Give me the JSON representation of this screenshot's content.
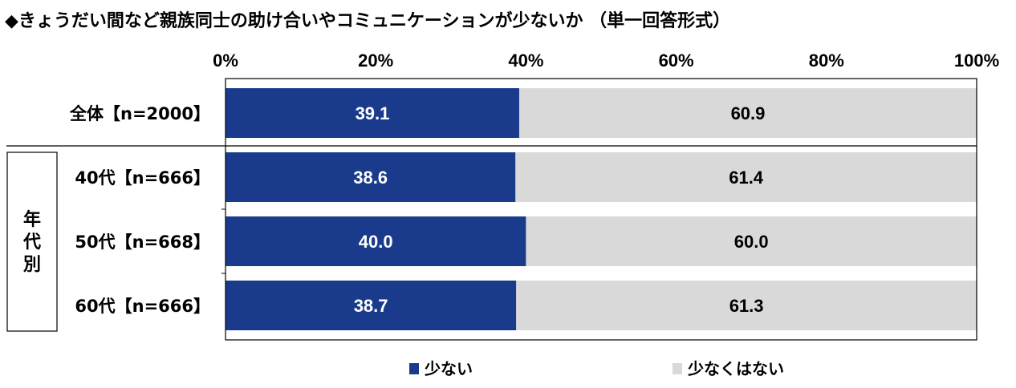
{
  "title": "◆きょうだい間など親族同士の助け合いやコミュニケーションが少ないか （単一回答形式）",
  "colors": {
    "series1": "#1a3a8c",
    "series2": "#d9d9d9",
    "axis": "#000000"
  },
  "chart_data": {
    "type": "bar",
    "orientation": "horizontal",
    "stacked": "percent",
    "categories": [
      "全体【n=2000】",
      "40代【n=666】",
      "50代【n=668】",
      "60代【n=666】"
    ],
    "group_label": "年代別",
    "group_members": [
      "40代【n=666】",
      "50代【n=668】",
      "60代【n=666】"
    ],
    "series": [
      {
        "name": "少ない",
        "values": [
          39.1,
          38.6,
          40.0,
          38.7
        ]
      },
      {
        "name": "少なくはない",
        "values": [
          60.9,
          61.4,
          60.0,
          61.3
        ]
      }
    ],
    "data_labels": [
      [
        "39.1",
        "38.6",
        "40.0",
        "38.7"
      ],
      [
        "60.9",
        "61.4",
        "60.0",
        "61.3"
      ]
    ],
    "xlim": [
      0,
      100
    ],
    "ticks": [
      "0%",
      "20%",
      "40%",
      "60%",
      "80%",
      "100%"
    ],
    "tick_values": [
      0,
      20,
      40,
      60,
      80,
      100
    ],
    "legend_position": "bottom",
    "grid": false
  }
}
